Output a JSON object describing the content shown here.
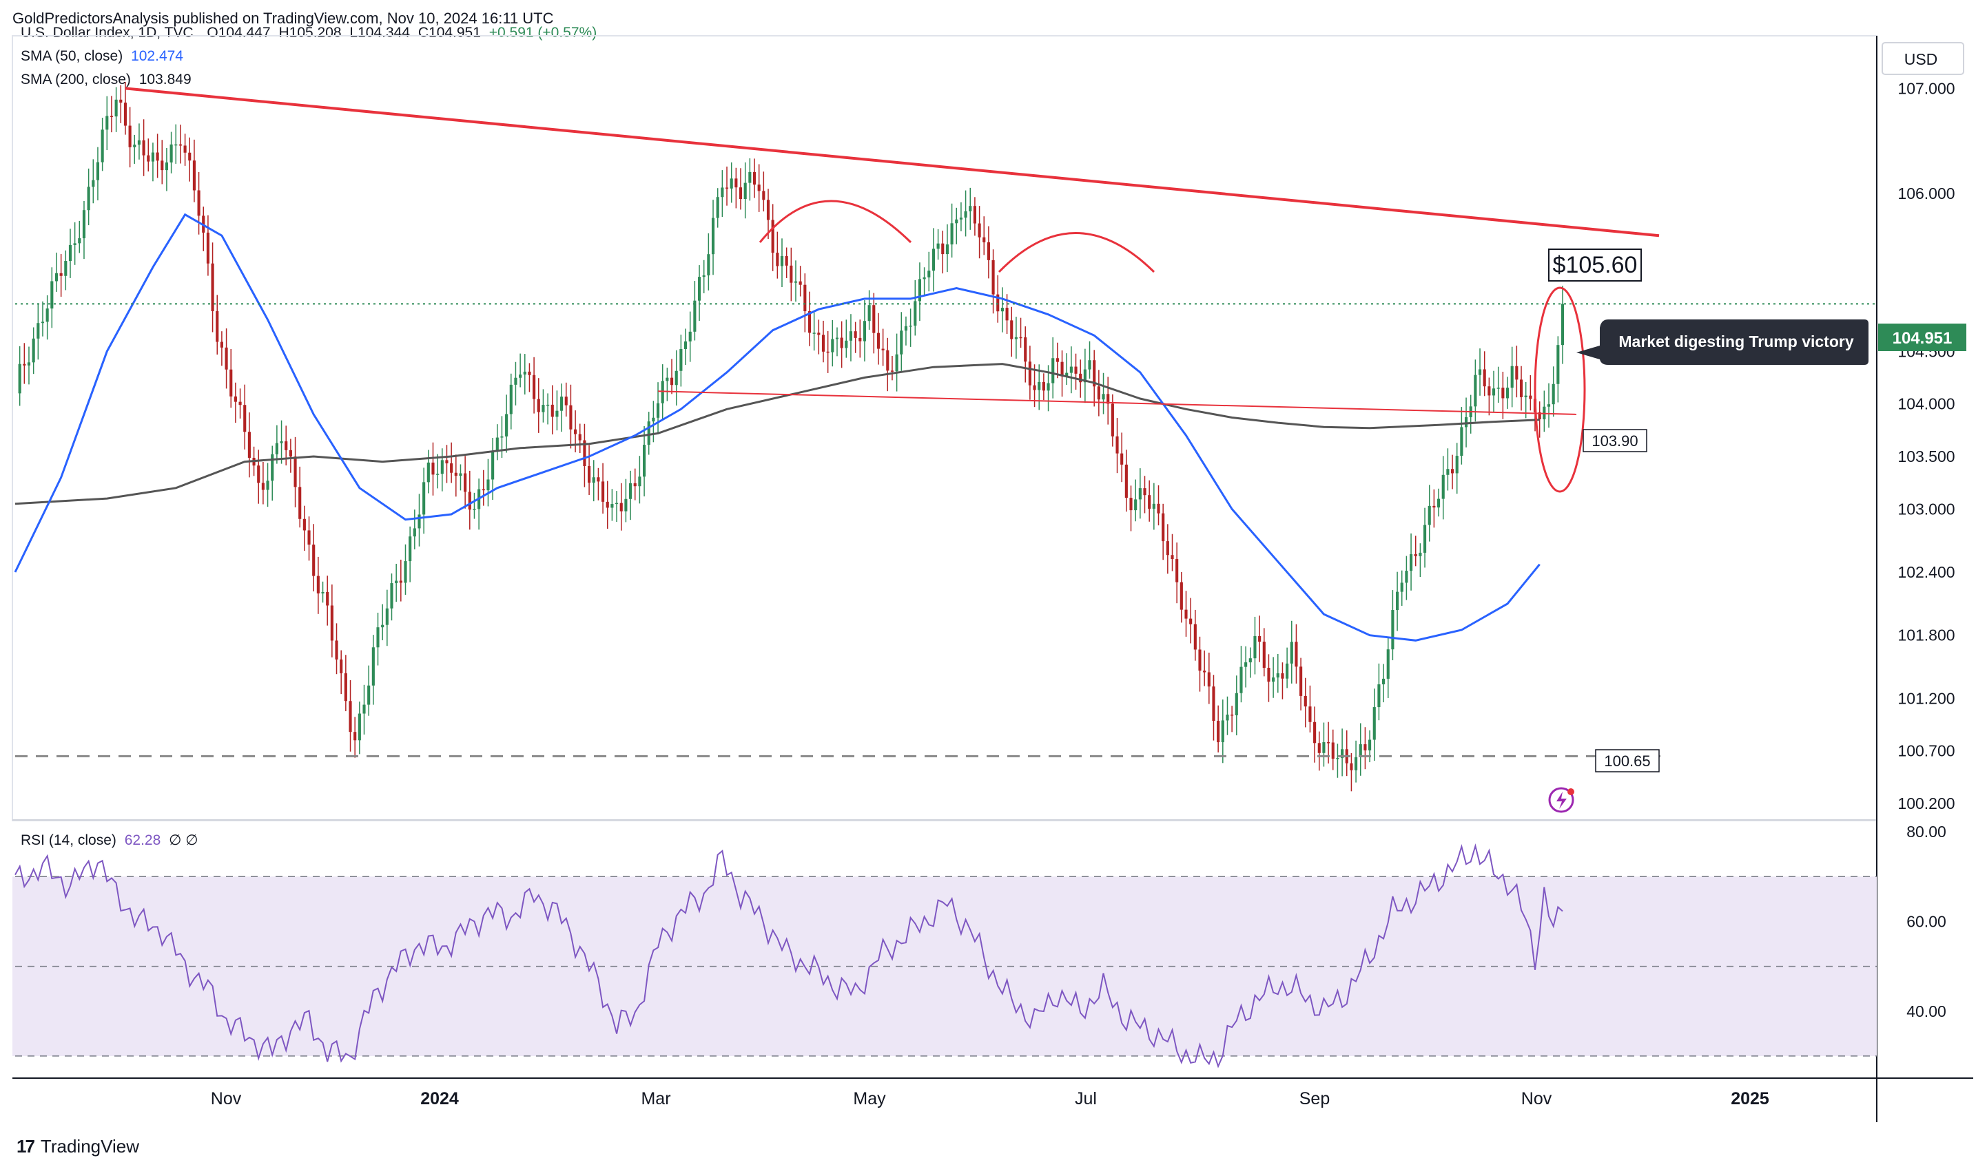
{
  "header": {
    "publisher_line": "GoldPredictorsAnalysis published on TradingView.com, Nov 10, 2024 16:11 UTC"
  },
  "legend": {
    "symbol_line": {
      "label": "U.S. Dollar Index, 1D, TVC",
      "open": "O104.447",
      "high": "H105.208",
      "low": "L104.344",
      "close": "C104.951",
      "change": "+0.591 (+0.57%)"
    },
    "sma50": {
      "label": "SMA (50, close)",
      "value": "102.474"
    },
    "sma200": {
      "label": "SMA (200, close)",
      "value": "103.849"
    },
    "rsi": {
      "label": "RSI (14, close)",
      "value": "62.28",
      "extra": "∅ ∅"
    }
  },
  "price_axis": {
    "currency": "USD",
    "ticks": [
      "107.000",
      "106.000",
      "104.500",
      "104.000",
      "103.500",
      "103.000",
      "102.400",
      "101.800",
      "101.200",
      "100.700",
      "100.200"
    ]
  },
  "rsi_axis": {
    "ticks": [
      "80.00",
      "60.00",
      "40.00"
    ]
  },
  "time_axis": {
    "labels": [
      "Nov",
      "2024",
      "Mar",
      "May",
      "Jul",
      "Sep",
      "Nov",
      "2025"
    ]
  },
  "annotations": {
    "target_label": "$105.60",
    "support_label": "103.90",
    "floor_label": "100.65",
    "current_price": "104.951",
    "callout": "Market digesting Trump victory"
  },
  "footer": {
    "brand": "TradingView",
    "brand_mark": "17"
  },
  "colors": {
    "bull": "#2e8b57",
    "bear": "#b22222",
    "trendline": "#e8323c",
    "sma50": "#2962ff",
    "sma200": "#555555",
    "rsi_line": "#7e57c2",
    "rsi_band": "#ede7f6",
    "last_price": "#2e8b57"
  },
  "chart_data": {
    "type": "candlestick",
    "title": "U.S. Dollar Index, 1D, TVC",
    "ylim": [
      100.05,
      107.5
    ],
    "rsi_ylim": [
      26,
      82
    ],
    "x_labels": [
      "Nov",
      "2024",
      "Mar",
      "May",
      "Jul",
      "Sep",
      "Nov",
      "2025"
    ],
    "close_path": [
      [
        0,
        104.1
      ],
      [
        6,
        104.9
      ],
      [
        12,
        105.4
      ],
      [
        17,
        106.2
      ],
      [
        22,
        106.9
      ],
      [
        26,
        106.5
      ],
      [
        31,
        106.2
      ],
      [
        36,
        106.6
      ],
      [
        40,
        105.8
      ],
      [
        44,
        104.7
      ],
      [
        48,
        104.0
      ],
      [
        53,
        103.2
      ],
      [
        58,
        103.7
      ],
      [
        63,
        102.8
      ],
      [
        68,
        102.0
      ],
      [
        71,
        101.3
      ],
      [
        74,
        100.85
      ],
      [
        78,
        101.6
      ],
      [
        82,
        102.2
      ],
      [
        86,
        102.7
      ],
      [
        90,
        103.3
      ],
      [
        95,
        103.5
      ],
      [
        100,
        102.9
      ],
      [
        105,
        103.7
      ],
      [
        110,
        104.3
      ],
      [
        115,
        104.0
      ],
      [
        120,
        103.9
      ],
      [
        125,
        103.4
      ],
      [
        130,
        102.9
      ],
      [
        135,
        103.3
      ],
      [
        140,
        104.0
      ],
      [
        145,
        104.5
      ],
      [
        150,
        105.2
      ],
      [
        154,
        106.2
      ],
      [
        158,
        106.0
      ],
      [
        162,
        106.1
      ],
      [
        166,
        105.4
      ],
      [
        170,
        105.1
      ],
      [
        174,
        104.7
      ],
      [
        178,
        104.5
      ],
      [
        182,
        104.6
      ],
      [
        186,
        104.9
      ],
      [
        190,
        104.2
      ],
      [
        194,
        104.8
      ],
      [
        198,
        105.2
      ],
      [
        202,
        105.5
      ],
      [
        206,
        105.9
      ],
      [
        210,
        105.6
      ],
      [
        214,
        105.0
      ],
      [
        218,
        104.6
      ],
      [
        222,
        104.1
      ],
      [
        226,
        104.4
      ],
      [
        230,
        104.2
      ],
      [
        234,
        104.4
      ],
      [
        238,
        103.9
      ],
      [
        242,
        103.1
      ],
      [
        246,
        103.2
      ],
      [
        250,
        102.7
      ],
      [
        254,
        102.2
      ],
      [
        258,
        101.5
      ],
      [
        262,
        100.85
      ],
      [
        266,
        101.3
      ],
      [
        270,
        101.7
      ],
      [
        274,
        101.4
      ],
      [
        278,
        101.6
      ],
      [
        282,
        100.9
      ],
      [
        286,
        100.75
      ],
      [
        290,
        100.5
      ],
      [
        294,
        100.8
      ],
      [
        298,
        101.4
      ],
      [
        302,
        102.4
      ],
      [
        306,
        102.7
      ],
      [
        310,
        103.1
      ],
      [
        314,
        103.6
      ],
      [
        318,
        104.2
      ],
      [
        322,
        104.1
      ],
      [
        326,
        104.3
      ],
      [
        330,
        103.9
      ],
      [
        334,
        104.0
      ],
      [
        337,
        104.951
      ]
    ],
    "sma50_path": [
      [
        0,
        102.4
      ],
      [
        10,
        103.3
      ],
      [
        20,
        104.5
      ],
      [
        30,
        105.3
      ],
      [
        37,
        105.8
      ],
      [
        45,
        105.6
      ],
      [
        55,
        104.8
      ],
      [
        65,
        103.9
      ],
      [
        75,
        103.2
      ],
      [
        85,
        102.9
      ],
      [
        95,
        102.95
      ],
      [
        105,
        103.2
      ],
      [
        115,
        103.35
      ],
      [
        125,
        103.5
      ],
      [
        135,
        103.7
      ],
      [
        145,
        103.95
      ],
      [
        155,
        104.3
      ],
      [
        165,
        104.7
      ],
      [
        175,
        104.9
      ],
      [
        185,
        105.0
      ],
      [
        195,
        105.0
      ],
      [
        205,
        105.1
      ],
      [
        215,
        105.0
      ],
      [
        225,
        104.85
      ],
      [
        235,
        104.65
      ],
      [
        245,
        104.3
      ],
      [
        255,
        103.7
      ],
      [
        265,
        103.0
      ],
      [
        275,
        102.5
      ],
      [
        285,
        102.0
      ],
      [
        295,
        101.8
      ],
      [
        305,
        101.75
      ],
      [
        315,
        101.85
      ],
      [
        325,
        102.1
      ],
      [
        332,
        102.474
      ]
    ],
    "sma200_path": [
      [
        0,
        103.05
      ],
      [
        20,
        103.1
      ],
      [
        35,
        103.2
      ],
      [
        50,
        103.45
      ],
      [
        65,
        103.5
      ],
      [
        80,
        103.45
      ],
      [
        95,
        103.5
      ],
      [
        110,
        103.58
      ],
      [
        125,
        103.62
      ],
      [
        140,
        103.72
      ],
      [
        155,
        103.95
      ],
      [
        170,
        104.1
      ],
      [
        185,
        104.25
      ],
      [
        200,
        104.35
      ],
      [
        215,
        104.38
      ],
      [
        225,
        104.3
      ],
      [
        235,
        104.2
      ],
      [
        245,
        104.05
      ],
      [
        255,
        103.95
      ],
      [
        265,
        103.87
      ],
      [
        275,
        103.82
      ],
      [
        285,
        103.78
      ],
      [
        295,
        103.77
      ],
      [
        310,
        103.8
      ],
      [
        322,
        103.83
      ],
      [
        332,
        103.849
      ]
    ],
    "rsi_path": [
      [
        0,
        69
      ],
      [
        6,
        72
      ],
      [
        12,
        68
      ],
      [
        18,
        74
      ],
      [
        22,
        66
      ],
      [
        27,
        60
      ],
      [
        32,
        58
      ],
      [
        37,
        50
      ],
      [
        42,
        45
      ],
      [
        46,
        38
      ],
      [
        51,
        34
      ],
      [
        56,
        31
      ],
      [
        60,
        36
      ],
      [
        64,
        38
      ],
      [
        68,
        31
      ],
      [
        73,
        30
      ],
      [
        78,
        43
      ],
      [
        83,
        50
      ],
      [
        88,
        55
      ],
      [
        93,
        54
      ],
      [
        98,
        58
      ],
      [
        103,
        62
      ],
      [
        108,
        61
      ],
      [
        113,
        66
      ],
      [
        118,
        62
      ],
      [
        123,
        54
      ],
      [
        127,
        46
      ],
      [
        131,
        37
      ],
      [
        135,
        39
      ],
      [
        140,
        55
      ],
      [
        145,
        62
      ],
      [
        150,
        66
      ],
      [
        154,
        74
      ],
      [
        158,
        66
      ],
      [
        163,
        60
      ],
      [
        168,
        53
      ],
      [
        173,
        50
      ],
      [
        178,
        46
      ],
      [
        183,
        44
      ],
      [
        188,
        52
      ],
      [
        193,
        56
      ],
      [
        198,
        60
      ],
      [
        203,
        64
      ],
      [
        208,
        58
      ],
      [
        212,
        50
      ],
      [
        217,
        42
      ],
      [
        222,
        38
      ],
      [
        227,
        44
      ],
      [
        232,
        40
      ],
      [
        237,
        45
      ],
      [
        242,
        38
      ],
      [
        246,
        36
      ],
      [
        250,
        34
      ],
      [
        254,
        31
      ],
      [
        258,
        29
      ],
      [
        262,
        30
      ],
      [
        266,
        38
      ],
      [
        270,
        42
      ],
      [
        275,
        46
      ],
      [
        280,
        44
      ],
      [
        285,
        40
      ],
      [
        290,
        44
      ],
      [
        295,
        52
      ],
      [
        300,
        62
      ],
      [
        306,
        66
      ],
      [
        312,
        71
      ],
      [
        318,
        76
      ],
      [
        322,
        71
      ],
      [
        326,
        68
      ],
      [
        329,
        60
      ],
      [
        331,
        52
      ],
      [
        333,
        66
      ],
      [
        335,
        58
      ],
      [
        337,
        62.28
      ]
    ],
    "levels": {
      "upper_trendline": {
        "from": [
          0,
          107.0
        ],
        "to": [
          337,
          105.6
        ]
      },
      "neckline": {
        "from": [
          140,
          104.12
        ],
        "to": [
          337,
          103.9
        ]
      },
      "floor": 100.65,
      "last_close": 104.951
    },
    "rsi_levels": [
      70,
      50,
      30
    ]
  }
}
